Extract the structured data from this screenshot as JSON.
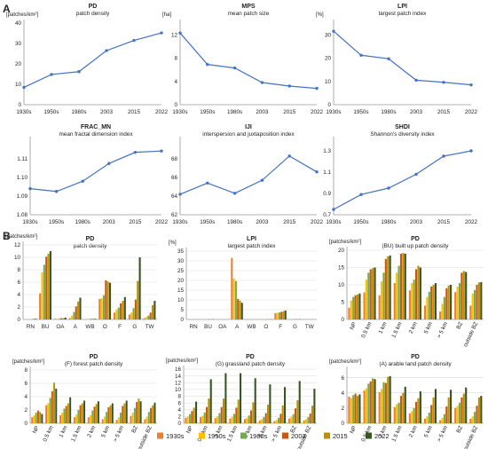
{
  "panel_labels": [
    "A",
    "B"
  ],
  "colors": {
    "line": "#4472c4",
    "axis": "#999999",
    "grid": "#d9d9d9",
    "series": [
      "#ed7d31",
      "#ffc000",
      "#70ad47",
      "#c55a11",
      "#bf8f00",
      "#375623"
    ]
  },
  "legend": [
    "1930s",
    "1950s",
    "1980s",
    "2003",
    "2015",
    "2022"
  ],
  "chart_data": [
    {
      "type": "line",
      "panel": "A",
      "title": "PD",
      "subtitle": "patch density",
      "yunit": "[patches/km²]",
      "categories": [
        "1930s",
        "1950s",
        "1980s",
        "2003",
        "2015",
        "2022"
      ],
      "values": [
        8.5,
        14.8,
        16.2,
        26.5,
        31.5,
        35.2
      ],
      "ylim": [
        0,
        40
      ],
      "yticks": [
        "0",
        "10",
        "20",
        "30",
        "40"
      ],
      "grid": false
    },
    {
      "type": "line",
      "panel": "A",
      "title": "MPS",
      "subtitle": "mean patch size",
      "yunit": "[ha]",
      "categories": [
        "1930s",
        "1950s",
        "1980s",
        "2003",
        "2015",
        "2022"
      ],
      "values": [
        12.3,
        6.9,
        6.3,
        3.8,
        3.2,
        2.8
      ],
      "ylim": [
        0,
        14
      ],
      "yticks": [
        "0",
        "4",
        "8",
        "12"
      ],
      "grid": false
    },
    {
      "type": "line",
      "panel": "A",
      "title": "LPI",
      "subtitle": "largest patch index",
      "yunit": "[%]",
      "categories": [
        "1930s",
        "1950s",
        "1980s",
        "2003",
        "2015",
        "2022"
      ],
      "values": [
        31.5,
        21.2,
        19.7,
        10.5,
        9.6,
        8.5
      ],
      "ylim": [
        0,
        35
      ],
      "yticks": [
        "0",
        "10",
        "20",
        "30"
      ],
      "grid": false
    },
    {
      "type": "line",
      "panel": "A",
      "title": "FRAC_MN",
      "subtitle": "mean fractal dimension index",
      "yunit": "",
      "categories": [
        "1930s",
        "1950s",
        "1980s",
        "2003",
        "2015",
        "2022"
      ],
      "values": [
        1.094,
        1.0925,
        1.098,
        1.1075,
        1.1135,
        1.1142
      ],
      "ylim": [
        1.08,
        1.12
      ],
      "yticks": [
        "1.08",
        "1.09",
        "1.10",
        "1.11"
      ],
      "grid": false
    },
    {
      "type": "line",
      "panel": "A",
      "title": "IJI",
      "subtitle": "interspersion and juxtaposition index",
      "yunit": "",
      "categories": [
        "1930s",
        "1950s",
        "1980s",
        "2003",
        "2015",
        "2022"
      ],
      "values": [
        64.2,
        65.4,
        64.3,
        65.7,
        68.3,
        66.6
      ],
      "ylim": [
        62,
        70
      ],
      "yticks": [
        "62",
        "64",
        "66",
        "68"
      ],
      "grid": false
    },
    {
      "type": "line",
      "panel": "A",
      "title": "SHDI",
      "subtitle": "Shannon's diversity index",
      "yunit": "",
      "categories": [
        "1930s",
        "1950s",
        "1980s",
        "2003",
        "2015",
        "2022"
      ],
      "values": [
        0.75,
        0.89,
        0.95,
        1.08,
        1.25,
        1.3
      ],
      "ylim": [
        0.7,
        1.4
      ],
      "yticks": [
        "0.7",
        "0.9",
        "1.1",
        "1.3"
      ],
      "grid": false
    },
    {
      "type": "bar",
      "panel": "B",
      "title": "PD",
      "subtitle": "patch density",
      "yunit": "[patches/km²]",
      "categories": [
        "RN",
        "BU",
        "OA",
        "A",
        "WB",
        "O",
        "F",
        "G",
        "TW"
      ],
      "series": [
        {
          "name": "1930s",
          "values": [
            0,
            4.2,
            0.1,
            0.2,
            0,
            3.3,
            1.1,
            0.8,
            0.2
          ]
        },
        {
          "name": "1950s",
          "values": [
            0,
            7.6,
            0.1,
            0.6,
            0,
            3.4,
            1.6,
            1.1,
            0.4
          ]
        },
        {
          "name": "1980s",
          "values": [
            0,
            8.8,
            0.1,
            1.2,
            0,
            3.9,
            1.9,
            1.8,
            0.6
          ]
        },
        {
          "name": "2003",
          "values": [
            0,
            10.1,
            0.2,
            2.1,
            0.1,
            6.3,
            2.6,
            3.2,
            1.1
          ]
        },
        {
          "name": "2015",
          "values": [
            0.1,
            10.6,
            0.2,
            2.9,
            0.1,
            6.1,
            3.0,
            6.2,
            2.3
          ]
        },
        {
          "name": "2022",
          "values": [
            0.1,
            11.0,
            0.3,
            3.5,
            0.1,
            5.9,
            3.6,
            10.0,
            3.0
          ]
        }
      ],
      "ylim": [
        0,
        12
      ],
      "yticks": [
        "0",
        "2",
        "4",
        "6",
        "8",
        "10",
        "12"
      ],
      "grid": true
    },
    {
      "type": "bar",
      "panel": "B",
      "title": "LPI",
      "subtitle": "largest patch index",
      "yunit": "[%]",
      "categories": [
        "RN",
        "BU",
        "OA",
        "A",
        "WB",
        "O",
        "F",
        "G",
        "TW"
      ],
      "series": [
        {
          "name": "1930s",
          "values": [
            0,
            0,
            0,
            31.5,
            0,
            0,
            3.2,
            0,
            0
          ]
        },
        {
          "name": "1950s",
          "values": [
            0,
            0,
            0,
            21.0,
            0,
            0,
            3.4,
            0.1,
            0
          ]
        },
        {
          "name": "1980s",
          "values": [
            0,
            0,
            0,
            19.7,
            0,
            0,
            3.6,
            0.2,
            0
          ]
        },
        {
          "name": "2003",
          "values": [
            0,
            0.1,
            0,
            10.5,
            0,
            0.1,
            3.9,
            0.1,
            0
          ]
        },
        {
          "name": "2015",
          "values": [
            0,
            0.1,
            0,
            9.6,
            0,
            0.1,
            4.2,
            0.1,
            0
          ]
        },
        {
          "name": "2022",
          "values": [
            0,
            0.1,
            0,
            8.5,
            0,
            0.1,
            4.6,
            0.1,
            0
          ]
        }
      ],
      "ylim": [
        0,
        35
      ],
      "yticks": [
        "0",
        "5",
        "10",
        "15",
        "20",
        "25",
        "30",
        "35"
      ],
      "grid": true
    },
    {
      "type": "bar",
      "panel": "B",
      "title": "PD",
      "subtitle": "(BU) built up patch density",
      "yunit": "[patches/km²]",
      "categories": [
        "NP",
        "0.5 km",
        "1 km",
        "1.5 km",
        "2 km",
        "5 km",
        "> 5 km",
        "BZ",
        "outside BZ"
      ],
      "series": [
        {
          "name": "1930s",
          "values": [
            3.4,
            7.8,
            7.0,
            10.5,
            8.4,
            4.0,
            2.3,
            7.9,
            4.0
          ]
        },
        {
          "name": "1950s",
          "values": [
            5.5,
            11.5,
            11.0,
            13.5,
            10.5,
            6.5,
            4.5,
            9.5,
            7.5
          ]
        },
        {
          "name": "1980s",
          "values": [
            6.5,
            13.5,
            13.5,
            15.5,
            11.5,
            8.0,
            6.5,
            10.5,
            8.5
          ]
        },
        {
          "name": "2003",
          "values": [
            7.0,
            14.5,
            17.5,
            19.0,
            14.5,
            9.5,
            9.0,
            13.5,
            10.0
          ]
        },
        {
          "name": "2015",
          "values": [
            7.2,
            14.8,
            18.2,
            19.2,
            15.5,
            10.0,
            9.8,
            14.0,
            10.7
          ]
        },
        {
          "name": "2022",
          "values": [
            7.5,
            15.0,
            18.5,
            19.0,
            15.0,
            10.5,
            10.0,
            13.7,
            10.8
          ]
        }
      ],
      "ylim": [
        0,
        20
      ],
      "yticks": [
        "0",
        "5",
        "10",
        "15",
        "20"
      ],
      "grid": true
    },
    {
      "type": "bar",
      "panel": "B",
      "title": "PD",
      "subtitle": "(F) forest patch density",
      "yunit": "[patches/km²]",
      "categories": [
        "NP",
        "0.5 km",
        "1 km",
        "1.5 km",
        "2 km",
        "5 km",
        "> 5 km",
        "BZ",
        "outside BZ"
      ],
      "series": [
        {
          "name": "1930s",
          "values": [
            0.9,
            2.7,
            1.2,
            0.9,
            0.9,
            0.6,
            0.5,
            1.1,
            0.6
          ]
        },
        {
          "name": "1950s",
          "values": [
            1.2,
            3.0,
            1.6,
            1.3,
            1.2,
            1.0,
            0.9,
            1.6,
            1.0
          ]
        },
        {
          "name": "1980s",
          "values": [
            1.6,
            3.8,
            2.2,
            2.0,
            1.9,
            1.7,
            1.6,
            2.3,
            1.7
          ]
        },
        {
          "name": "2003",
          "values": [
            1.9,
            4.8,
            2.6,
            2.7,
            2.5,
            2.4,
            2.6,
            3.2,
            2.3
          ]
        },
        {
          "name": "2015",
          "values": [
            1.7,
            6.1,
            3.0,
            3.0,
            2.9,
            2.7,
            3.0,
            3.7,
            2.7
          ]
        },
        {
          "name": "2022",
          "values": [
            1.4,
            5.2,
            3.9,
            3.4,
            3.3,
            3.0,
            3.4,
            3.3,
            3.1
          ]
        }
      ],
      "ylim": [
        0,
        8
      ],
      "yticks": [
        "0",
        "2",
        "4",
        "6",
        "8"
      ],
      "grid": true
    },
    {
      "type": "bar",
      "panel": "B",
      "title": "PD",
      "subtitle": "(G) grassland patch density",
      "yunit": "[patches/km²]",
      "categories": [
        "NP",
        "0.5 km",
        "1 km",
        "1.5 km",
        "2 km",
        "5 km",
        "> 5 km",
        "BZ",
        "outside BZ"
      ],
      "series": [
        {
          "name": "1930s",
          "values": [
            1.6,
            1.8,
            1.5,
            1.4,
            1.2,
            0.8,
            0.6,
            1.4,
            0.8
          ]
        },
        {
          "name": "1950s",
          "values": [
            2.0,
            2.2,
            2.0,
            1.9,
            1.6,
            1.2,
            1.0,
            1.9,
            1.2
          ]
        },
        {
          "name": "1980s",
          "values": [
            2.7,
            3.2,
            3.0,
            2.8,
            2.3,
            1.8,
            1.6,
            2.7,
            1.8
          ]
        },
        {
          "name": "2003",
          "values": [
            3.6,
            4.8,
            4.8,
            4.6,
            3.8,
            3.0,
            2.8,
            4.4,
            2.9
          ]
        },
        {
          "name": "2015",
          "values": [
            4.6,
            7.3,
            7.3,
            7.0,
            6.2,
            5.5,
            5.3,
            6.8,
            5.2
          ]
        },
        {
          "name": "2022",
          "values": [
            6.4,
            13.0,
            14.8,
            14.8,
            13.3,
            11.5,
            10.7,
            12.5,
            10.2
          ]
        }
      ],
      "ylim": [
        0,
        16
      ],
      "yticks": [
        "0",
        "2",
        "4",
        "6",
        "8",
        "10",
        "12",
        "14",
        "16"
      ],
      "grid": true
    },
    {
      "type": "bar",
      "panel": "B",
      "title": "PD",
      "subtitle": "(A) arable land patch density",
      "yunit": "[patches/km²]",
      "categories": [
        "NP",
        "0.5 km",
        "1 km",
        "1.5 km",
        "2 km",
        "5 km",
        "> 5 km",
        "BZ",
        "outside BZ"
      ],
      "series": [
        {
          "name": "1930s",
          "values": [
            3.5,
            4.3,
            4.1,
            2.1,
            1.3,
            0.6,
            0.4,
            2.0,
            0.6
          ]
        },
        {
          "name": "1950s",
          "values": [
            3.3,
            4.6,
            4.5,
            2.5,
            1.6,
            0.9,
            0.7,
            2.3,
            0.9
          ]
        },
        {
          "name": "1980s",
          "values": [
            3.7,
            5.2,
            5.4,
            2.7,
            2.0,
            1.4,
            1.2,
            2.7,
            1.5
          ]
        },
        {
          "name": "2003",
          "values": [
            3.9,
            5.5,
            5.3,
            3.6,
            2.8,
            2.4,
            2.2,
            3.4,
            2.3
          ]
        },
        {
          "name": "2015",
          "values": [
            3.6,
            5.9,
            6.1,
            4.0,
            3.3,
            3.4,
            3.4,
            3.9,
            3.4
          ]
        },
        {
          "name": "2022",
          "values": [
            3.8,
            5.8,
            6.2,
            4.8,
            4.2,
            4.5,
            4.4,
            4.7,
            3.6
          ]
        }
      ],
      "ylim": [
        0,
        7
      ],
      "yticks": [
        "0",
        "2",
        "4",
        "6"
      ],
      "grid": true
    }
  ]
}
